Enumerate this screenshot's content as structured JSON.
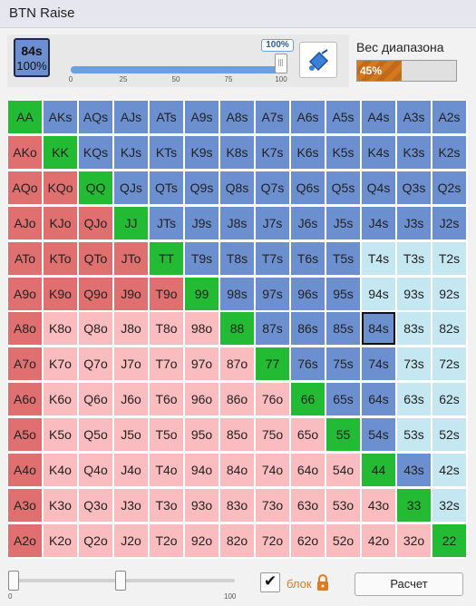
{
  "window": {
    "title": "BTN Raise"
  },
  "selected_hand": {
    "name": "84s",
    "percent": "100%"
  },
  "frequency_slider": {
    "value": 100,
    "value_label": "100%",
    "ticks": [
      "0",
      "25",
      "50",
      "75",
      "100"
    ]
  },
  "range_weight": {
    "label": "Вес диапазона",
    "percent": 45,
    "percent_label": "45%"
  },
  "colors": {
    "fold_pair": "#e07070",
    "fold": "#fbbcbf",
    "raise": "#6c8fd0",
    "call": "#c4e7f2",
    "pair_highlight": "#22bb33",
    "weight_bar": "#d27a1f"
  },
  "grid": {
    "hands": [
      [
        "AA",
        "AKs",
        "AQs",
        "AJs",
        "ATs",
        "A9s",
        "A8s",
        "A7s",
        "A6s",
        "A5s",
        "A4s",
        "A3s",
        "A2s"
      ],
      [
        "AKo",
        "KK",
        "KQs",
        "KJs",
        "KTs",
        "K9s",
        "K8s",
        "K7s",
        "K6s",
        "K5s",
        "K4s",
        "K3s",
        "K2s"
      ],
      [
        "AQo",
        "KQo",
        "QQ",
        "QJs",
        "QTs",
        "Q9s",
        "Q8s",
        "Q7s",
        "Q6s",
        "Q5s",
        "Q4s",
        "Q3s",
        "Q2s"
      ],
      [
        "AJo",
        "KJo",
        "QJo",
        "JJ",
        "JTs",
        "J9s",
        "J8s",
        "J7s",
        "J6s",
        "J5s",
        "J4s",
        "J3s",
        "J2s"
      ],
      [
        "ATo",
        "KTo",
        "QTo",
        "JTo",
        "TT",
        "T9s",
        "T8s",
        "T7s",
        "T6s",
        "T5s",
        "T4s",
        "T3s",
        "T2s"
      ],
      [
        "A9o",
        "K9o",
        "Q9o",
        "J9o",
        "T9o",
        "99",
        "98s",
        "97s",
        "96s",
        "95s",
        "94s",
        "93s",
        "92s"
      ],
      [
        "A8o",
        "K8o",
        "Q8o",
        "J8o",
        "T8o",
        "98o",
        "88",
        "87s",
        "86s",
        "85s",
        "84s",
        "83s",
        "82s"
      ],
      [
        "A7o",
        "K7o",
        "Q7o",
        "J7o",
        "T7o",
        "97o",
        "87o",
        "77",
        "76s",
        "75s",
        "74s",
        "73s",
        "72s"
      ],
      [
        "A6o",
        "K6o",
        "Q6o",
        "J6o",
        "T6o",
        "96o",
        "86o",
        "76o",
        "66",
        "65s",
        "64s",
        "63s",
        "62s"
      ],
      [
        "A5o",
        "K5o",
        "Q5o",
        "J5o",
        "T5o",
        "95o",
        "85o",
        "75o",
        "65o",
        "55",
        "54s",
        "53s",
        "52s"
      ],
      [
        "A4o",
        "K4o",
        "Q4o",
        "J4o",
        "T4o",
        "94o",
        "84o",
        "74o",
        "64o",
        "54o",
        "44",
        "43s",
        "42s"
      ],
      [
        "A3o",
        "K3o",
        "Q3o",
        "J3o",
        "T3o",
        "93o",
        "83o",
        "73o",
        "63o",
        "53o",
        "43o",
        "33",
        "32s"
      ],
      [
        "A2o",
        "K2o",
        "Q2o",
        "J2o",
        "T2o",
        "92o",
        "82o",
        "72o",
        "62o",
        "52o",
        "42o",
        "32o",
        "22"
      ]
    ],
    "states": [
      [
        "P",
        "R",
        "R",
        "R",
        "R",
        "R",
        "R",
        "R",
        "R",
        "R",
        "R",
        "R",
        "R"
      ],
      [
        "F",
        "P",
        "R",
        "R",
        "R",
        "R",
        "R",
        "R",
        "R",
        "R",
        "R",
        "R",
        "R"
      ],
      [
        "F",
        "F",
        "P",
        "R",
        "R",
        "R",
        "R",
        "R",
        "R",
        "R",
        "R",
        "R",
        "R"
      ],
      [
        "F",
        "F",
        "F",
        "P",
        "R",
        "R",
        "R",
        "R",
        "R",
        "R",
        "R",
        "R",
        "R"
      ],
      [
        "F",
        "F",
        "F",
        "F",
        "P",
        "R",
        "R",
        "R",
        "R",
        "R",
        "C",
        "C",
        "C"
      ],
      [
        "F",
        "F",
        "F",
        "F",
        "F",
        "P",
        "R",
        "R",
        "R",
        "R",
        "C",
        "C",
        "C"
      ],
      [
        "F",
        "L",
        "L",
        "L",
        "L",
        "L",
        "P",
        "R",
        "R",
        "R",
        "R",
        "C",
        "C"
      ],
      [
        "F",
        "L",
        "L",
        "L",
        "L",
        "L",
        "L",
        "P",
        "R",
        "R",
        "R",
        "C",
        "C"
      ],
      [
        "F",
        "L",
        "L",
        "L",
        "L",
        "L",
        "L",
        "L",
        "P",
        "R",
        "R",
        "C",
        "C"
      ],
      [
        "F",
        "L",
        "L",
        "L",
        "L",
        "L",
        "L",
        "L",
        "L",
        "P",
        "R",
        "C",
        "C"
      ],
      [
        "F",
        "L",
        "L",
        "L",
        "L",
        "L",
        "L",
        "L",
        "L",
        "L",
        "P",
        "R",
        "C"
      ],
      [
        "F",
        "L",
        "L",
        "L",
        "L",
        "L",
        "L",
        "L",
        "L",
        "L",
        "L",
        "P",
        "C"
      ],
      [
        "F",
        "L",
        "L",
        "L",
        "L",
        "L",
        "L",
        "L",
        "L",
        "L",
        "L",
        "L",
        "P"
      ]
    ],
    "selected": "84s"
  },
  "bottom": {
    "slider": {
      "min_label": "0",
      "max_label": "100",
      "low": 0,
      "high": 47
    },
    "lock": {
      "checked": true,
      "label": "блок"
    },
    "calc_button": "Расчет"
  }
}
